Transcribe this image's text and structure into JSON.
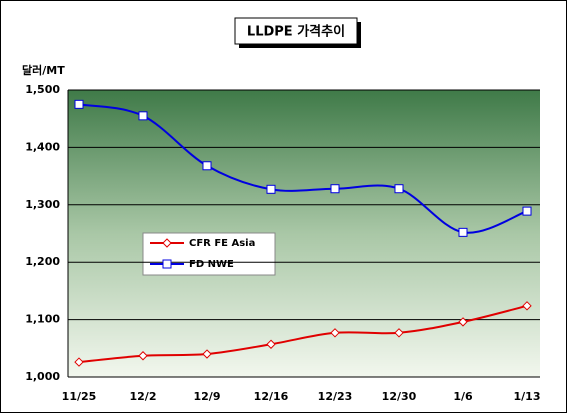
{
  "chart_data": {
    "type": "line",
    "title": "LLDPE 가격추이",
    "y_label": "달러/MT",
    "categories": [
      "11/25",
      "12/2",
      "12/9",
      "12/16",
      "12/23",
      "12/30",
      "1/6",
      "1/13"
    ],
    "series": [
      {
        "name": "CFR FE Asia",
        "color": "#e00000",
        "marker": "diamond",
        "values": [
          1026,
          1037,
          1040,
          1057,
          1077,
          1077,
          1096,
          1124
        ]
      },
      {
        "name": "FD NWE",
        "color": "#0000e0",
        "marker": "square",
        "values": [
          1475,
          1455,
          1368,
          1327,
          1328,
          1328,
          1252,
          1289
        ]
      }
    ],
    "ylim": [
      1000,
      1500
    ],
    "yticks": [
      {
        "value": 1000,
        "label": "1,000"
      },
      {
        "value": 1100,
        "label": "1,100"
      },
      {
        "value": 1200,
        "label": "1,200"
      },
      {
        "value": 1300,
        "label": "1,300"
      },
      {
        "value": 1400,
        "label": "1,400"
      },
      {
        "value": 1500,
        "label": "1,500"
      }
    ],
    "grid": true,
    "smooth": true
  }
}
